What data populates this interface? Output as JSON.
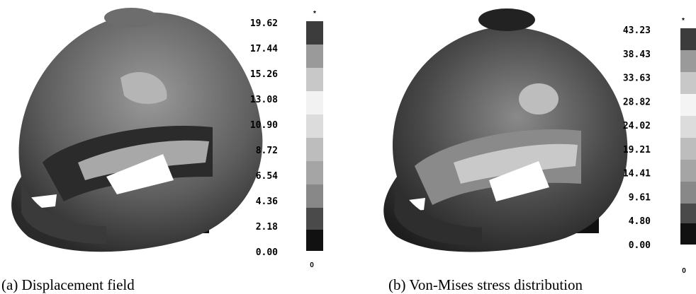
{
  "panels": [
    {
      "caption": "(a) Displacement field",
      "scale_labels": [
        "19.62",
        "17.44",
        "15.26",
        "13.08",
        "10.90",
        "8.72",
        "6.54",
        "4.36",
        "2.18",
        "0.00"
      ],
      "bar_top": "*",
      "bar_bottom": "0"
    },
    {
      "caption": "(b) Von-Mises stress distribution",
      "scale_labels": [
        "43.23",
        "38.43",
        "33.63",
        "28.82",
        "24.02",
        "19.21",
        "14.41",
        "9.61",
        "4.80",
        "0.00"
      ],
      "bar_top": "*",
      "bar_bottom": "0"
    }
  ]
}
